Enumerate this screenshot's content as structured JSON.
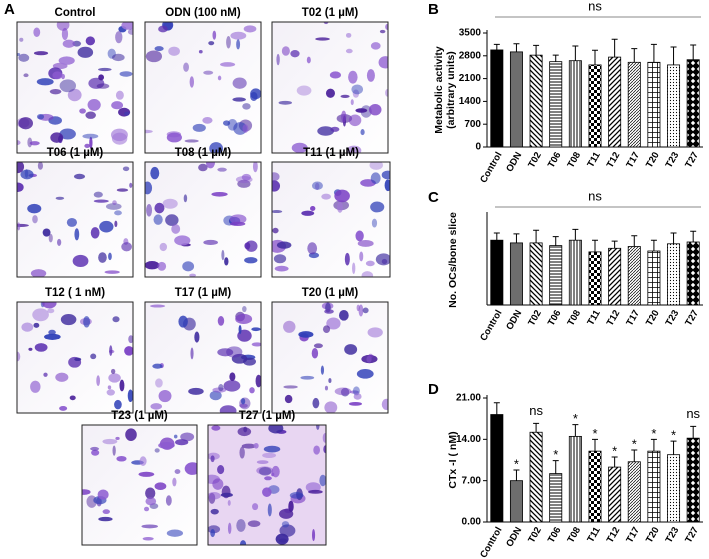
{
  "panel_a": {
    "label": "A",
    "images": [
      "Control",
      "ODN (100 nM)",
      "T02 (1 µM)",
      "T06 (1 µM)",
      "T08 (1 µM)",
      "T11 (1 µM)",
      "T12 ( 1 nM)",
      "T17 (1 µM)",
      "T20 (1 µM)",
      "T23 (1 µM)",
      "T27 (1 µM)"
    ]
  },
  "chart_data": [
    {
      "panel": "B",
      "type": "bar",
      "ylabel": [
        "Metabolic activity",
        "(arbitrary units)"
      ],
      "annotation": "ns",
      "categories": [
        "Control",
        "ODN",
        "T02",
        "T06",
        "T08",
        "T11",
        "T12",
        "T17",
        "T20",
        "T23",
        "T27"
      ],
      "values": [
        2980,
        2920,
        2820,
        2620,
        2650,
        2520,
        2760,
        2600,
        2600,
        2520,
        2680
      ],
      "errors": [
        170,
        250,
        300,
        200,
        450,
        450,
        550,
        420,
        550,
        550,
        450
      ],
      "ylim": [
        0,
        3500
      ],
      "yticks": [
        0,
        700,
        1400,
        2100,
        2800,
        3500
      ],
      "color": "#000000",
      "patterns": [
        "solid-black",
        "solid-gray",
        "diag-down",
        "horizontal",
        "vertical",
        "checker",
        "diag-up",
        "diag-fine",
        "crosshatch",
        "dots",
        "diamond"
      ]
    },
    {
      "panel": "C",
      "type": "bar",
      "ylabel": [
        "No. OCs/bone slice"
      ],
      "annotation": "ns",
      "categories": [
        "Control",
        "ODN",
        "T02",
        "T06",
        "T08",
        "T11",
        "T12",
        "T17",
        "T20",
        "T23",
        "T27"
      ],
      "values": [
        72,
        69,
        69,
        66,
        72,
        59,
        63,
        65,
        60,
        68,
        70
      ],
      "errors": [
        8,
        10,
        14,
        10,
        12,
        13,
        8,
        12,
        12,
        12,
        12
      ],
      "ylim": [
        0,
        100
      ],
      "yticks": [],
      "color": "#000000",
      "patterns": [
        "solid-black",
        "solid-gray",
        "diag-down",
        "horizontal",
        "vertical",
        "checker",
        "diag-up",
        "diag-fine",
        "crosshatch",
        "dots",
        "diamond"
      ]
    },
    {
      "panel": "D",
      "type": "bar",
      "ylabel": [
        "CTx -I ( nM)"
      ],
      "categories": [
        "Control",
        "ODN",
        "T02",
        "T06",
        "T08",
        "T11",
        "T12",
        "T17",
        "T20",
        "T23",
        "T27"
      ],
      "values": [
        18.2,
        7,
        15.2,
        8.2,
        14.5,
        12,
        9.3,
        10.2,
        12,
        11.4,
        14.2
      ],
      "errors": [
        2,
        1.8,
        1.5,
        2.2,
        2,
        2,
        1.7,
        2,
        2,
        2.3,
        2
      ],
      "significance": [
        null,
        "*",
        "ns",
        "*",
        "*",
        "*",
        "*",
        "*",
        "*",
        "*",
        "ns"
      ],
      "ylim": [
        0,
        21
      ],
      "yticks": [
        {
          "value": 0,
          "label": "0.00"
        },
        {
          "value": 7,
          "label": "7.00"
        },
        {
          "value": 14,
          "label": "14.00"
        },
        {
          "value": 21,
          "label": "21.00"
        }
      ],
      "color": "#000000",
      "patterns": [
        "solid-black",
        "solid-gray",
        "diag-down",
        "horizontal",
        "vertical",
        "checker",
        "diag-up",
        "diag-fine",
        "crosshatch",
        "dots",
        "diamond"
      ]
    }
  ]
}
